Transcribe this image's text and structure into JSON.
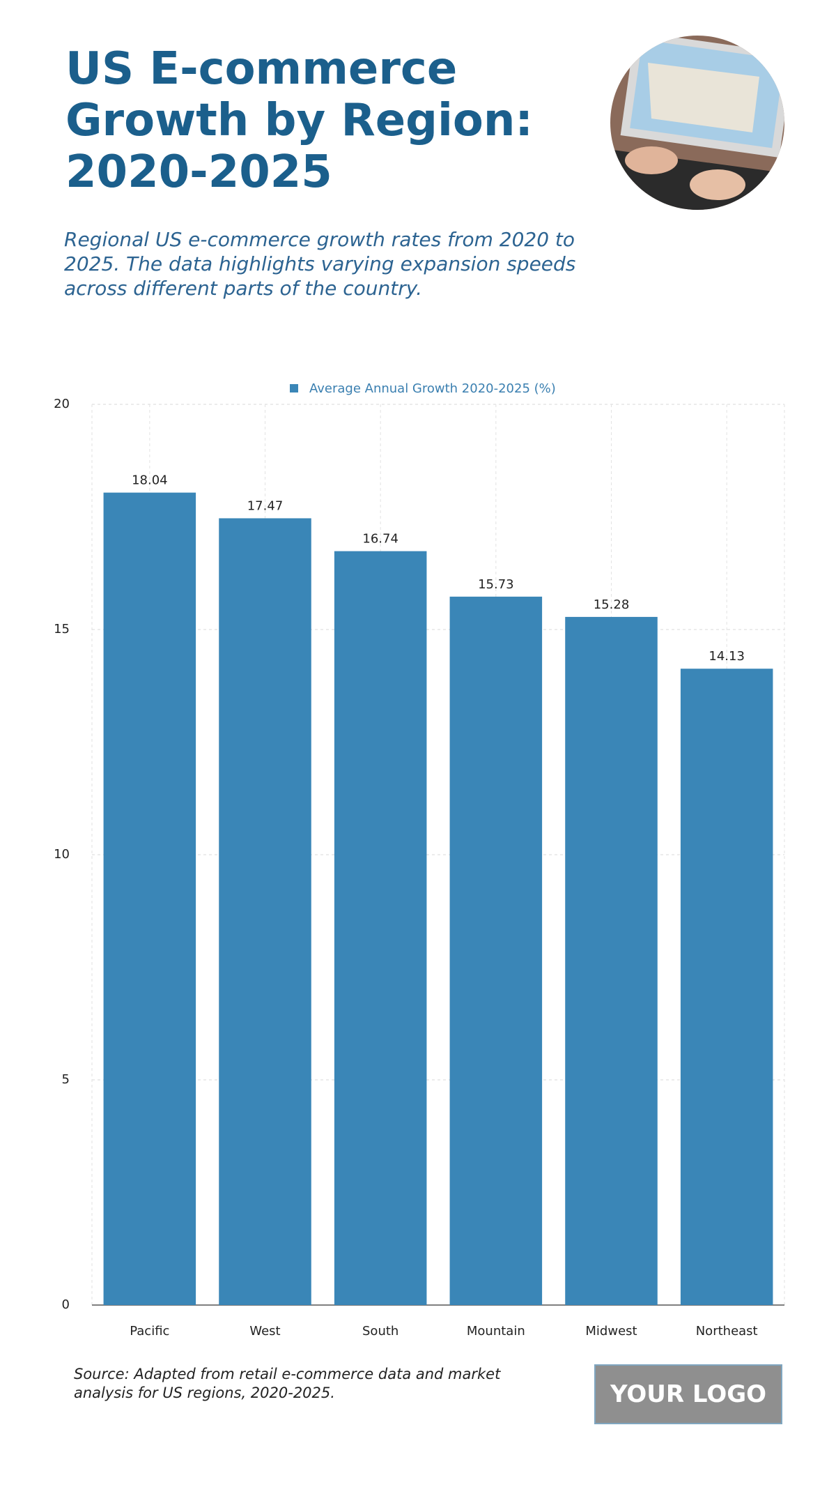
{
  "chart_data": {
    "type": "bar",
    "title": "US E-commerce Growth by Region: 2020-2025",
    "subtitle": "Regional US e-commerce growth rates from 2020 to 2025. The data highlights varying expansion speeds across different parts of the country.",
    "categories": [
      "Pacific",
      "West",
      "South",
      "Mountain",
      "Midwest",
      "Northeast"
    ],
    "series": [
      {
        "name": "Average Annual Growth 2020-2025 (%)",
        "color": "#3a86b7",
        "values": [
          18.04,
          17.47,
          16.74,
          15.73,
          15.28,
          14.13
        ]
      }
    ],
    "ylim": [
      0,
      20
    ],
    "yticks": [
      0,
      5,
      10,
      15,
      20
    ],
    "grid": true,
    "legend": "top",
    "source": "Source: Adapted from retail e-commerce data and market analysis for US regions, 2020-2025.",
    "logo": "YOUR LOGO"
  }
}
